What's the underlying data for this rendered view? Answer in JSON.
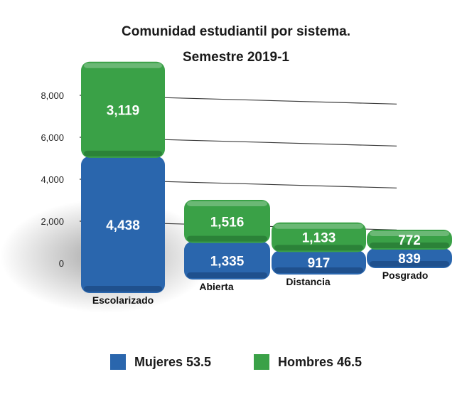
{
  "chart_data": {
    "type": "bar",
    "stacked": true,
    "title": "Comunidad estudiantil por sistema.",
    "subtitle": "Semestre 2019-1",
    "categories": [
      "Escolarizado",
      "Abierta",
      "Distancia",
      "Posgrado"
    ],
    "series": [
      {
        "name": "Mujeres 53.5",
        "color": "#2a66ad",
        "values": [
          4438,
          1335,
          917,
          839
        ],
        "labels": [
          "4,438",
          "1,335",
          "917",
          "839"
        ]
      },
      {
        "name": "Hombres 46.5",
        "color": "#3aa147",
        "values": [
          3119,
          1516,
          1133,
          772
        ],
        "labels": [
          "3,119",
          "1,516",
          "1,133",
          "772"
        ]
      }
    ],
    "y_ticks": [
      "0",
      "2,000",
      "4,000",
      "6,000",
      "8,000"
    ],
    "y_tick_values": [
      0,
      2000,
      4000,
      6000,
      8000
    ],
    "ylim": [
      0,
      8000
    ],
    "grid": true,
    "legend_position": "bottom",
    "legend_entries": [
      {
        "label": "Mujeres 53.5",
        "color": "#2a66ad"
      },
      {
        "label": "Hombres 46.5",
        "color": "#3aa147"
      }
    ]
  }
}
